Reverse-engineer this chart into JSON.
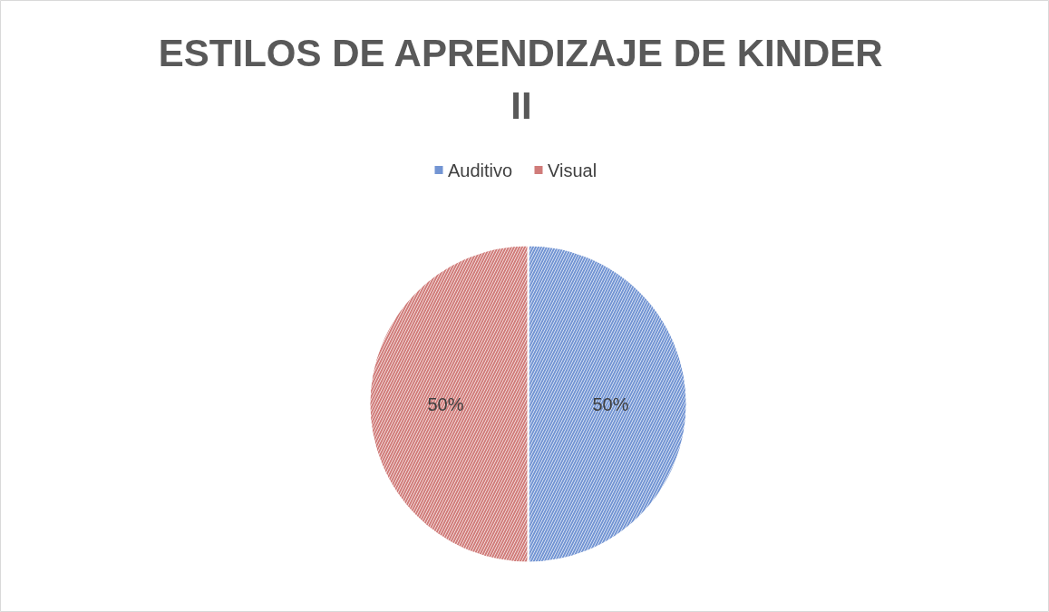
{
  "chart_data": {
    "type": "pie",
    "title": "ESTILOS DE APRENDIZAJE DE KINDER II",
    "categories": [
      "Auditivo",
      "Visual"
    ],
    "values": [
      50,
      50
    ],
    "colors": [
      "#4472c4",
      "#c0504d"
    ],
    "data_labels": true,
    "value_labels": [
      "50%",
      "50%"
    ],
    "legend": "top"
  }
}
